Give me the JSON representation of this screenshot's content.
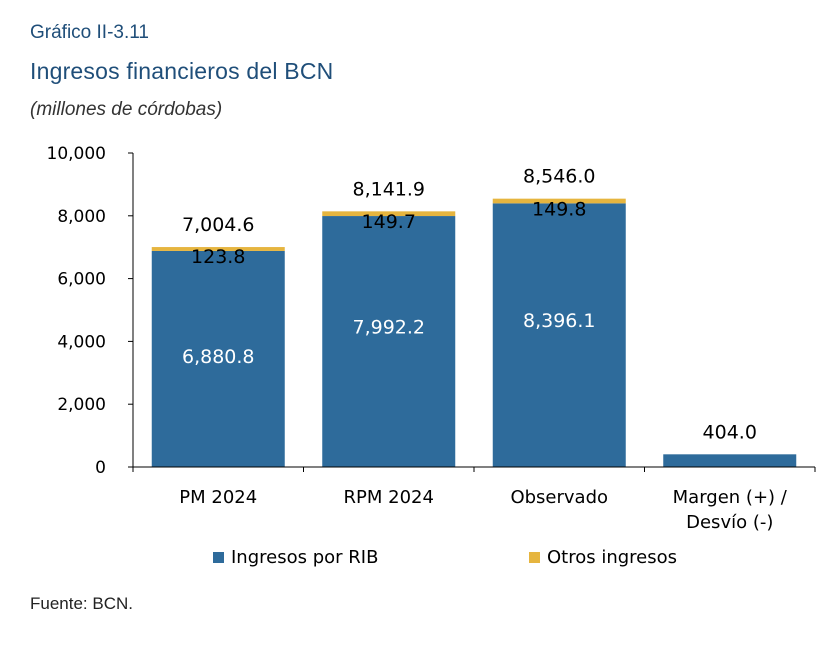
{
  "header": {
    "figure_number": "Gráfico II-3.11",
    "title": "Ingresos financieros del BCN",
    "unit": "(millones de córdobas)"
  },
  "footer": {
    "source": "Fuente: BCN."
  },
  "colors": {
    "series_rib": "#2e6b9b",
    "series_otros": "#e6b53f",
    "axis": "#000000"
  },
  "chart_data": {
    "type": "bar",
    "stacked": true,
    "categories": [
      "PM 2024",
      "RPM 2024",
      "Observado",
      "Margen (+) / Desvío (-)"
    ],
    "category_lines": [
      [
        "PM 2024"
      ],
      [
        "RPM 2024"
      ],
      [
        "Observado"
      ],
      [
        "Margen (+) /",
        "Desvío (-)"
      ]
    ],
    "series": [
      {
        "name": "Ingresos por RIB",
        "values": [
          6880.8,
          7992.2,
          8396.1,
          404.0
        ],
        "labels": [
          "6,880.8",
          "7,992.2",
          "8,396.1",
          ""
        ]
      },
      {
        "name": "Otros ingresos",
        "values": [
          123.8,
          149.7,
          149.8,
          0
        ],
        "labels": [
          "123.8",
          "149.7",
          "149.8",
          ""
        ]
      }
    ],
    "totals": [
      7004.6,
      8141.9,
      8546.0,
      404.0
    ],
    "total_labels": [
      "7,004.6",
      "8,141.9",
      "8,546.0",
      "404.0"
    ],
    "ylim": [
      0,
      10000
    ],
    "yticks": [
      0,
      2000,
      4000,
      6000,
      8000,
      10000
    ],
    "ytick_labels": [
      "0",
      "2,000",
      "4,000",
      "6,000",
      "8,000",
      "10,000"
    ],
    "legend": {
      "position": "bottom",
      "entries": [
        "Ingresos por RIB",
        "Otros ingresos"
      ]
    },
    "grid": false,
    "xlabel": "",
    "ylabel": ""
  }
}
